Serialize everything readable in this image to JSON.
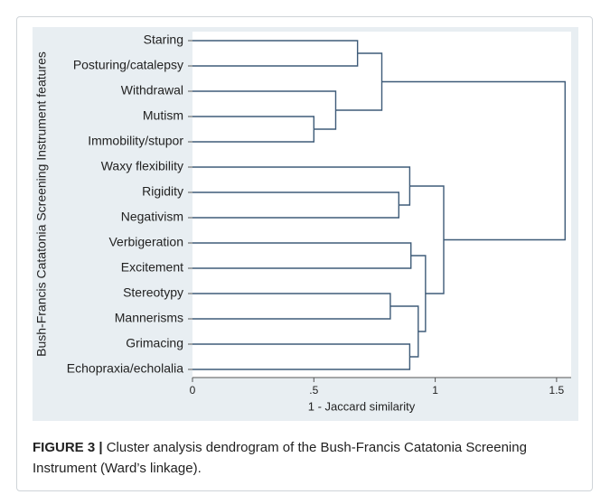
{
  "chart_data": {
    "type": "dendrogram",
    "ylabel": "Bush-Francis Catatonia Screening Instrument features",
    "xlabel": "1 - Jaccard similarity",
    "leaves": [
      "Staring",
      "Posturing/catalepsy",
      "Withdrawal",
      "Mutism",
      "Immobility/stupor",
      "Waxy flexibility",
      "Rigidity",
      "Negativism",
      "Verbigeration",
      "Excitement",
      "Stereotypy",
      "Mannerisms",
      "Grimacing",
      "Echopraxia/echolalia"
    ],
    "merges": [
      {
        "children": [
          3,
          4
        ],
        "height": 0.5
      },
      {
        "children": [
          2,
          14
        ],
        "height": 0.59
      },
      {
        "children": [
          0,
          1
        ],
        "height": 0.68
      },
      {
        "children": [
          16,
          15
        ],
        "height": 0.78
      },
      {
        "children": [
          6,
          7
        ],
        "height": 0.85
      },
      {
        "children": [
          5,
          18
        ],
        "height": 0.895
      },
      {
        "children": [
          8,
          9
        ],
        "height": 0.9
      },
      {
        "children": [
          10,
          11
        ],
        "height": 0.815
      },
      {
        "children": [
          12,
          13
        ],
        "height": 0.895
      },
      {
        "children": [
          21,
          22
        ],
        "height": 0.93
      },
      {
        "children": [
          20,
          23
        ],
        "height": 0.96
      },
      {
        "children": [
          19,
          24
        ],
        "height": 1.035
      },
      {
        "children": [
          17,
          25
        ],
        "height": 1.535
      }
    ],
    "xlim": [
      0,
      1.56
    ],
    "xticks": [
      0,
      {
        "value": 0.5,
        "label": ".5"
      },
      1,
      1.5
    ],
    "color": "#3e5b78"
  },
  "caption_label": "FIGURE 3 |",
  "caption": "Cluster analysis dendrogram of the Bush-Francis Catatonia Screening Instrument (Ward’s linkage)."
}
